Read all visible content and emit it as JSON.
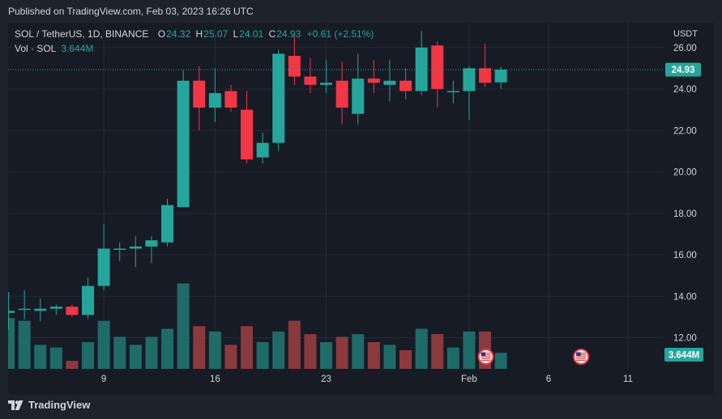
{
  "header": {
    "published": "Published on TradingView.com, Feb 03, 2023 16:26 UTC"
  },
  "legend": {
    "symbol": "SOL / TetherUS, 1D, BINANCE",
    "open_label": "O",
    "open": "24.32",
    "high_label": "H",
    "high": "25.07",
    "low_label": "L",
    "low": "24.01",
    "close_label": "C",
    "close": "24.93",
    "change": "+0.61 (+2.51%)"
  },
  "volume_legend": {
    "symbol": "Vol · SOL",
    "value": "3.644M"
  },
  "price_axis": {
    "currency": "USDT",
    "last_price_label": "24.93",
    "volume_label": "3.644M"
  },
  "footer": {
    "brand": "TradingView"
  },
  "colors": {
    "up": "#26a69a",
    "down": "#f23645",
    "up_volume": "#1f6b68",
    "down_volume": "#8a3a3f",
    "grid": "#262a36",
    "background": "#171b26"
  },
  "chart_data": {
    "type": "candlestick",
    "y_ticks": [
      "26.00",
      "24.00",
      "22.00",
      "20.00",
      "18.00",
      "16.00",
      "14.00",
      "12.00"
    ],
    "y_tick_values": [
      26,
      24,
      22,
      20,
      18,
      16,
      14,
      12
    ],
    "ylim": [
      10.5,
      27.2
    ],
    "x_ticks": [
      {
        "label": "9",
        "day": 9
      },
      {
        "label": "16",
        "day": 16
      },
      {
        "label": "23",
        "day": 23
      },
      {
        "label": "Feb",
        "day": 32
      },
      {
        "label": "6",
        "day": 37
      },
      {
        "label": "11",
        "day": 42
      }
    ],
    "xlim_days": [
      3.1,
      45.3
    ],
    "last_price": 24.93,
    "candles": [
      {
        "day": 3,
        "o": 13.2,
        "h": 14.2,
        "l": 12.4,
        "c": 13.3,
        "v": 1.9
      },
      {
        "day": 4,
        "o": 13.4,
        "h": 14.3,
        "l": 12.9,
        "c": 13.4,
        "v": 1.8
      },
      {
        "day": 5,
        "o": 13.3,
        "h": 13.9,
        "l": 12.8,
        "c": 13.4,
        "v": 0.9
      },
      {
        "day": 6,
        "o": 13.4,
        "h": 13.6,
        "l": 13.1,
        "c": 13.5,
        "v": 0.8
      },
      {
        "day": 7,
        "o": 13.5,
        "h": 13.6,
        "l": 13.0,
        "c": 13.1,
        "v": 0.3
      },
      {
        "day": 8,
        "o": 13.1,
        "h": 14.9,
        "l": 12.9,
        "c": 14.5,
        "v": 1.0
      },
      {
        "day": 9,
        "o": 14.5,
        "h": 17.5,
        "l": 14.3,
        "c": 16.3,
        "v": 1.8
      },
      {
        "day": 10,
        "o": 16.3,
        "h": 16.6,
        "l": 15.7,
        "c": 16.3,
        "v": 1.2
      },
      {
        "day": 11,
        "o": 16.3,
        "h": 16.9,
        "l": 15.4,
        "c": 16.4,
        "v": 0.9
      },
      {
        "day": 12,
        "o": 16.4,
        "h": 16.9,
        "l": 15.6,
        "c": 16.7,
        "v": 1.2
      },
      {
        "day": 13,
        "o": 16.6,
        "h": 18.7,
        "l": 16.4,
        "c": 18.4,
        "v": 1.5
      },
      {
        "day": 14,
        "o": 18.3,
        "h": 24.9,
        "l": 18.3,
        "c": 24.4,
        "v": 3.2
      },
      {
        "day": 15,
        "o": 24.4,
        "h": 25.1,
        "l": 22.0,
        "c": 23.1,
        "v": 1.6
      },
      {
        "day": 16,
        "o": 23.1,
        "h": 25.0,
        "l": 22.4,
        "c": 23.8,
        "v": 1.4
      },
      {
        "day": 17,
        "o": 23.9,
        "h": 24.2,
        "l": 22.9,
        "c": 23.1,
        "v": 0.9
      },
      {
        "day": 18,
        "o": 23.0,
        "h": 23.9,
        "l": 20.4,
        "c": 20.6,
        "v": 1.6
      },
      {
        "day": 19,
        "o": 20.7,
        "h": 21.9,
        "l": 20.4,
        "c": 21.4,
        "v": 1.0
      },
      {
        "day": 20,
        "o": 21.4,
        "h": 25.9,
        "l": 21.0,
        "c": 25.7,
        "v": 1.4
      },
      {
        "day": 21,
        "o": 25.6,
        "h": 26.6,
        "l": 24.2,
        "c": 24.6,
        "v": 1.8
      },
      {
        "day": 22,
        "o": 24.6,
        "h": 25.5,
        "l": 23.8,
        "c": 24.2,
        "v": 1.3
      },
      {
        "day": 23,
        "o": 24.2,
        "h": 25.4,
        "l": 23.8,
        "c": 24.3,
        "v": 1.0
      },
      {
        "day": 24,
        "o": 24.4,
        "h": 25.3,
        "l": 22.3,
        "c": 23.1,
        "v": 1.2
      },
      {
        "day": 25,
        "o": 22.8,
        "h": 25.7,
        "l": 22.3,
        "c": 24.5,
        "v": 1.3
      },
      {
        "day": 26,
        "o": 24.5,
        "h": 25.4,
        "l": 23.8,
        "c": 24.3,
        "v": 1.0
      },
      {
        "day": 27,
        "o": 24.2,
        "h": 25.4,
        "l": 23.4,
        "c": 24.4,
        "v": 0.9
      },
      {
        "day": 28,
        "o": 24.4,
        "h": 25.0,
        "l": 23.5,
        "c": 23.9,
        "v": 0.7
      },
      {
        "day": 29,
        "o": 23.9,
        "h": 26.8,
        "l": 23.7,
        "c": 26.0,
        "v": 1.5
      },
      {
        "day": 30,
        "o": 26.1,
        "h": 26.3,
        "l": 23.1,
        "c": 24.0,
        "v": 1.3
      },
      {
        "day": 31,
        "o": 23.9,
        "h": 24.4,
        "l": 23.3,
        "c": 23.9,
        "v": 0.8
      },
      {
        "day": 32,
        "o": 23.9,
        "h": 25.1,
        "l": 22.5,
        "c": 25.0,
        "v": 1.4
      },
      {
        "day": 33,
        "o": 25.0,
        "h": 26.2,
        "l": 24.1,
        "c": 24.3,
        "v": 1.4
      },
      {
        "day": 34,
        "o": 24.32,
        "h": 25.07,
        "l": 24.01,
        "c": 24.93,
        "v": 0.6
      }
    ]
  }
}
